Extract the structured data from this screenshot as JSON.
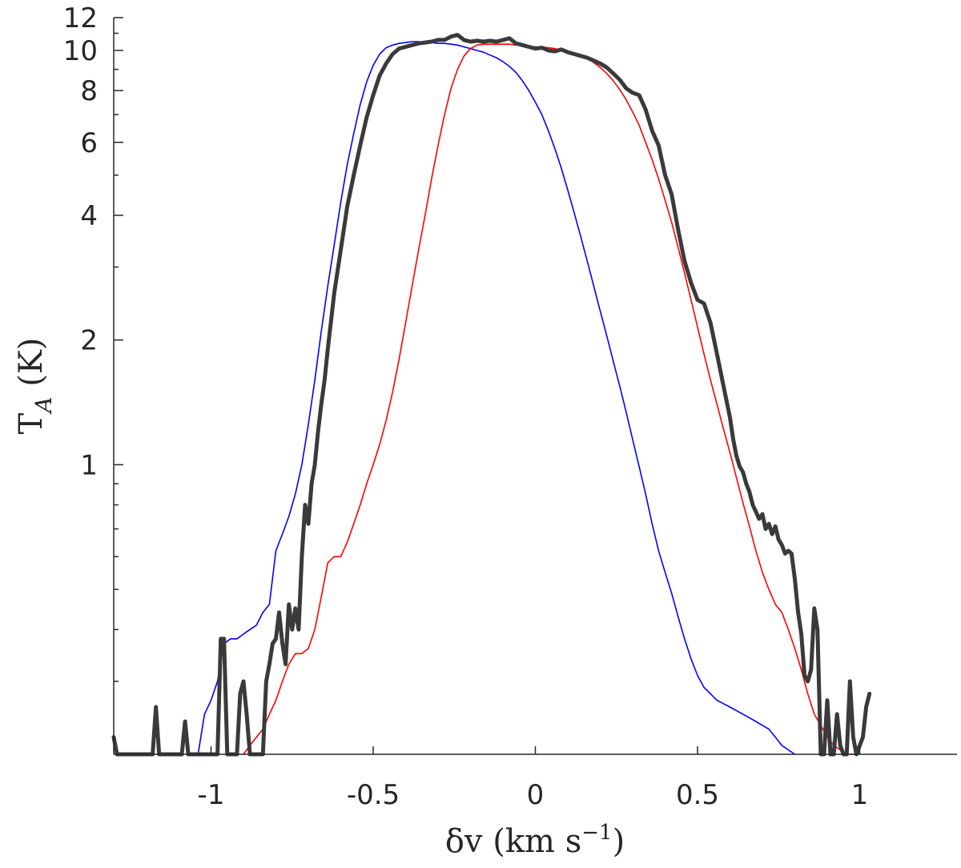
{
  "chart_data": {
    "type": "line",
    "xlabel_main": "δv (km s",
    "xlabel_sup": "−1",
    "xlabel_close": ")",
    "ylabel_main": "T",
    "ylabel_sub": "A",
    "ylabel_unit": " (K)",
    "x_scale": "linear",
    "y_scale": "log",
    "xlim": [
      -1.3,
      1.3
    ],
    "ylim": [
      0.2,
      12
    ],
    "x_ticks": [
      -1,
      -0.5,
      0,
      0.5,
      1
    ],
    "x_tick_labels": [
      "-1",
      "-0.5",
      "0",
      "0.5",
      "1"
    ],
    "y_ticks": [
      1,
      2,
      4,
      6,
      8,
      10,
      12
    ],
    "y_tick_labels": [
      "1",
      "2",
      "4",
      "6",
      "8",
      "10",
      "12"
    ],
    "y_minor_ticks": [
      0.3,
      0.4,
      0.5,
      0.6,
      0.7,
      0.8,
      0.9,
      3,
      5,
      7,
      9,
      11
    ],
    "grid": false,
    "legend": "none",
    "series": [
      {
        "color": "#0000ff",
        "width": 1.6,
        "x": [
          -1.04,
          -1.02,
          -1.0,
          -0.98,
          -0.96,
          -0.94,
          -0.92,
          -0.9,
          -0.88,
          -0.86,
          -0.84,
          -0.82,
          -0.8,
          -0.78,
          -0.76,
          -0.74,
          -0.72,
          -0.7,
          -0.68,
          -0.66,
          -0.64,
          -0.62,
          -0.6,
          -0.58,
          -0.56,
          -0.54,
          -0.52,
          -0.5,
          -0.48,
          -0.46,
          -0.44,
          -0.42,
          -0.4,
          -0.38,
          -0.36,
          -0.34,
          -0.32,
          -0.3,
          -0.28,
          -0.26,
          -0.24,
          -0.22,
          -0.2,
          -0.18,
          -0.16,
          -0.14,
          -0.12,
          -0.1,
          -0.08,
          -0.06,
          -0.04,
          -0.02,
          0.0,
          0.02,
          0.04,
          0.06,
          0.08,
          0.1,
          0.12,
          0.14,
          0.16,
          0.18,
          0.2,
          0.22,
          0.24,
          0.26,
          0.28,
          0.3,
          0.32,
          0.34,
          0.36,
          0.38,
          0.4,
          0.42,
          0.44,
          0.46,
          0.48,
          0.5,
          0.52,
          0.54,
          0.56,
          0.58,
          0.6,
          0.62,
          0.64,
          0.66,
          0.68,
          0.7,
          0.72,
          0.74,
          0.76,
          0.78,
          0.8
        ],
        "y": [
          0.2,
          0.25,
          0.27,
          0.3,
          0.37,
          0.38,
          0.38,
          0.39,
          0.4,
          0.41,
          0.44,
          0.46,
          0.62,
          0.68,
          0.75,
          0.85,
          1.0,
          1.25,
          1.6,
          2.1,
          2.7,
          3.4,
          4.3,
          5.3,
          6.3,
          7.4,
          8.4,
          9.2,
          9.8,
          10.15,
          10.3,
          10.4,
          10.45,
          10.5,
          10.5,
          10.45,
          10.45,
          10.4,
          10.4,
          10.35,
          10.3,
          10.2,
          10.1,
          10.0,
          9.9,
          9.75,
          9.6,
          9.4,
          9.15,
          8.85,
          8.45,
          8.0,
          7.5,
          7.0,
          6.4,
          5.8,
          5.2,
          4.6,
          4.05,
          3.55,
          3.1,
          2.7,
          2.35,
          2.05,
          1.78,
          1.55,
          1.34,
          1.15,
          0.99,
          0.85,
          0.72,
          0.62,
          0.55,
          0.49,
          0.43,
          0.38,
          0.34,
          0.31,
          0.29,
          0.28,
          0.27,
          0.265,
          0.26,
          0.255,
          0.25,
          0.245,
          0.24,
          0.235,
          0.23,
          0.22,
          0.21,
          0.205,
          0.2
        ]
      },
      {
        "color": "#ff0000",
        "width": 1.6,
        "x": [
          -0.9,
          -0.88,
          -0.86,
          -0.84,
          -0.82,
          -0.8,
          -0.78,
          -0.76,
          -0.74,
          -0.72,
          -0.7,
          -0.68,
          -0.66,
          -0.64,
          -0.62,
          -0.6,
          -0.58,
          -0.56,
          -0.54,
          -0.52,
          -0.5,
          -0.48,
          -0.46,
          -0.44,
          -0.42,
          -0.4,
          -0.38,
          -0.36,
          -0.34,
          -0.32,
          -0.3,
          -0.28,
          -0.26,
          -0.24,
          -0.22,
          -0.2,
          -0.18,
          -0.16,
          -0.14,
          -0.12,
          -0.1,
          -0.08,
          -0.06,
          -0.04,
          -0.02,
          0.0,
          0.02,
          0.04,
          0.06,
          0.08,
          0.1,
          0.12,
          0.14,
          0.16,
          0.18,
          0.2,
          0.22,
          0.24,
          0.26,
          0.28,
          0.3,
          0.32,
          0.34,
          0.36,
          0.38,
          0.4,
          0.42,
          0.44,
          0.46,
          0.48,
          0.5,
          0.52,
          0.54,
          0.56,
          0.58,
          0.6,
          0.62,
          0.64,
          0.66,
          0.68,
          0.7,
          0.72,
          0.74,
          0.76,
          0.78,
          0.8,
          0.82,
          0.84,
          0.86,
          0.88,
          0.9,
          0.92,
          0.94,
          0.96,
          0.98,
          1.0
        ],
        "y": [
          0.2,
          0.21,
          0.22,
          0.23,
          0.25,
          0.27,
          0.3,
          0.33,
          0.35,
          0.35,
          0.36,
          0.4,
          0.48,
          0.58,
          0.6,
          0.6,
          0.65,
          0.72,
          0.8,
          0.9,
          1.0,
          1.12,
          1.28,
          1.5,
          1.8,
          2.2,
          2.7,
          3.3,
          4.0,
          4.9,
          5.9,
          7.0,
          8.1,
          9.0,
          9.7,
          10.1,
          10.3,
          10.35,
          10.35,
          10.35,
          10.35,
          10.35,
          10.3,
          10.3,
          10.25,
          10.2,
          10.2,
          10.15,
          10.1,
          10.0,
          9.9,
          9.8,
          9.7,
          9.55,
          9.35,
          9.1,
          8.8,
          8.45,
          8.05,
          7.6,
          7.1,
          6.6,
          6.0,
          5.45,
          4.9,
          4.35,
          3.85,
          3.35,
          2.9,
          2.5,
          2.15,
          1.85,
          1.6,
          1.4,
          1.22,
          1.07,
          0.93,
          0.81,
          0.71,
          0.62,
          0.55,
          0.5,
          0.46,
          0.44,
          0.4,
          0.36,
          0.32,
          0.28,
          0.25,
          0.235,
          0.22,
          0.21,
          0.205,
          0.2,
          0.2,
          0.2
        ]
      },
      {
        "color": "#3a3a3a",
        "width": 5,
        "x": [
          -1.3,
          -1.29,
          -1.28,
          -1.18,
          -1.17,
          -1.16,
          -1.09,
          -1.08,
          -1.07,
          -0.98,
          -0.97,
          -0.96,
          -0.95,
          -0.94,
          -0.93,
          -0.92,
          -0.91,
          -0.9,
          -0.89,
          -0.88,
          -0.87,
          -0.86,
          -0.85,
          -0.84,
          -0.83,
          -0.82,
          -0.81,
          -0.8,
          -0.79,
          -0.78,
          -0.77,
          -0.76,
          -0.75,
          -0.74,
          -0.73,
          -0.72,
          -0.71,
          -0.7,
          -0.69,
          -0.68,
          -0.67,
          -0.66,
          -0.65,
          -0.64,
          -0.62,
          -0.6,
          -0.58,
          -0.56,
          -0.54,
          -0.52,
          -0.5,
          -0.48,
          -0.46,
          -0.44,
          -0.42,
          -0.4,
          -0.38,
          -0.36,
          -0.34,
          -0.32,
          -0.3,
          -0.28,
          -0.26,
          -0.24,
          -0.22,
          -0.2,
          -0.18,
          -0.16,
          -0.14,
          -0.12,
          -0.1,
          -0.08,
          -0.06,
          -0.04,
          -0.02,
          0.0,
          0.02,
          0.04,
          0.06,
          0.08,
          0.1,
          0.12,
          0.14,
          0.16,
          0.18,
          0.2,
          0.22,
          0.24,
          0.26,
          0.28,
          0.3,
          0.32,
          0.34,
          0.36,
          0.38,
          0.4,
          0.42,
          0.44,
          0.46,
          0.48,
          0.5,
          0.52,
          0.54,
          0.56,
          0.58,
          0.6,
          0.61,
          0.62,
          0.63,
          0.64,
          0.65,
          0.66,
          0.67,
          0.68,
          0.69,
          0.7,
          0.71,
          0.72,
          0.73,
          0.74,
          0.75,
          0.76,
          0.77,
          0.78,
          0.79,
          0.8,
          0.81,
          0.82,
          0.83,
          0.84,
          0.85,
          0.86,
          0.87,
          0.88,
          0.89,
          0.9,
          0.91,
          0.92,
          0.93,
          0.94,
          0.95,
          0.96,
          0.97,
          0.98,
          0.99,
          1.0,
          1.01,
          1.02,
          1.03
        ],
        "y": [
          0.22,
          0.2,
          0.2,
          0.2,
          0.26,
          0.2,
          0.2,
          0.24,
          0.2,
          0.2,
          0.38,
          0.38,
          0.2,
          0.2,
          0.2,
          0.2,
          0.28,
          0.3,
          0.25,
          0.2,
          0.2,
          0.2,
          0.2,
          0.2,
          0.3,
          0.33,
          0.37,
          0.38,
          0.44,
          0.37,
          0.33,
          0.46,
          0.4,
          0.45,
          0.4,
          0.6,
          0.8,
          0.72,
          0.9,
          1.0,
          1.2,
          1.4,
          1.6,
          1.9,
          2.6,
          3.3,
          4.2,
          5.0,
          5.9,
          6.9,
          7.8,
          8.7,
          9.3,
          9.8,
          10.1,
          10.2,
          10.3,
          10.4,
          10.45,
          10.5,
          10.6,
          10.6,
          10.8,
          10.9,
          10.6,
          10.5,
          10.55,
          10.5,
          10.55,
          10.5,
          10.6,
          10.7,
          10.4,
          10.3,
          10.2,
          10.1,
          10.15,
          10.0,
          9.95,
          10.05,
          9.9,
          9.8,
          9.7,
          9.6,
          9.45,
          9.3,
          9.1,
          8.8,
          8.5,
          8.1,
          7.9,
          7.8,
          7.2,
          6.4,
          5.9,
          5.0,
          4.5,
          3.7,
          3.1,
          2.75,
          2.5,
          2.45,
          2.2,
          1.85,
          1.55,
          1.3,
          1.15,
          1.05,
          0.99,
          0.96,
          0.9,
          0.86,
          0.8,
          0.77,
          0.74,
          0.76,
          0.7,
          0.72,
          0.68,
          0.71,
          0.66,
          0.64,
          0.61,
          0.62,
          0.61,
          0.53,
          0.44,
          0.39,
          0.31,
          0.3,
          0.32,
          0.45,
          0.4,
          0.2,
          0.2,
          0.27,
          0.2,
          0.2,
          0.25,
          0.21,
          0.2,
          0.2,
          0.3,
          0.22,
          0.2,
          0.21,
          0.22,
          0.26,
          0.28
        ]
      }
    ]
  }
}
